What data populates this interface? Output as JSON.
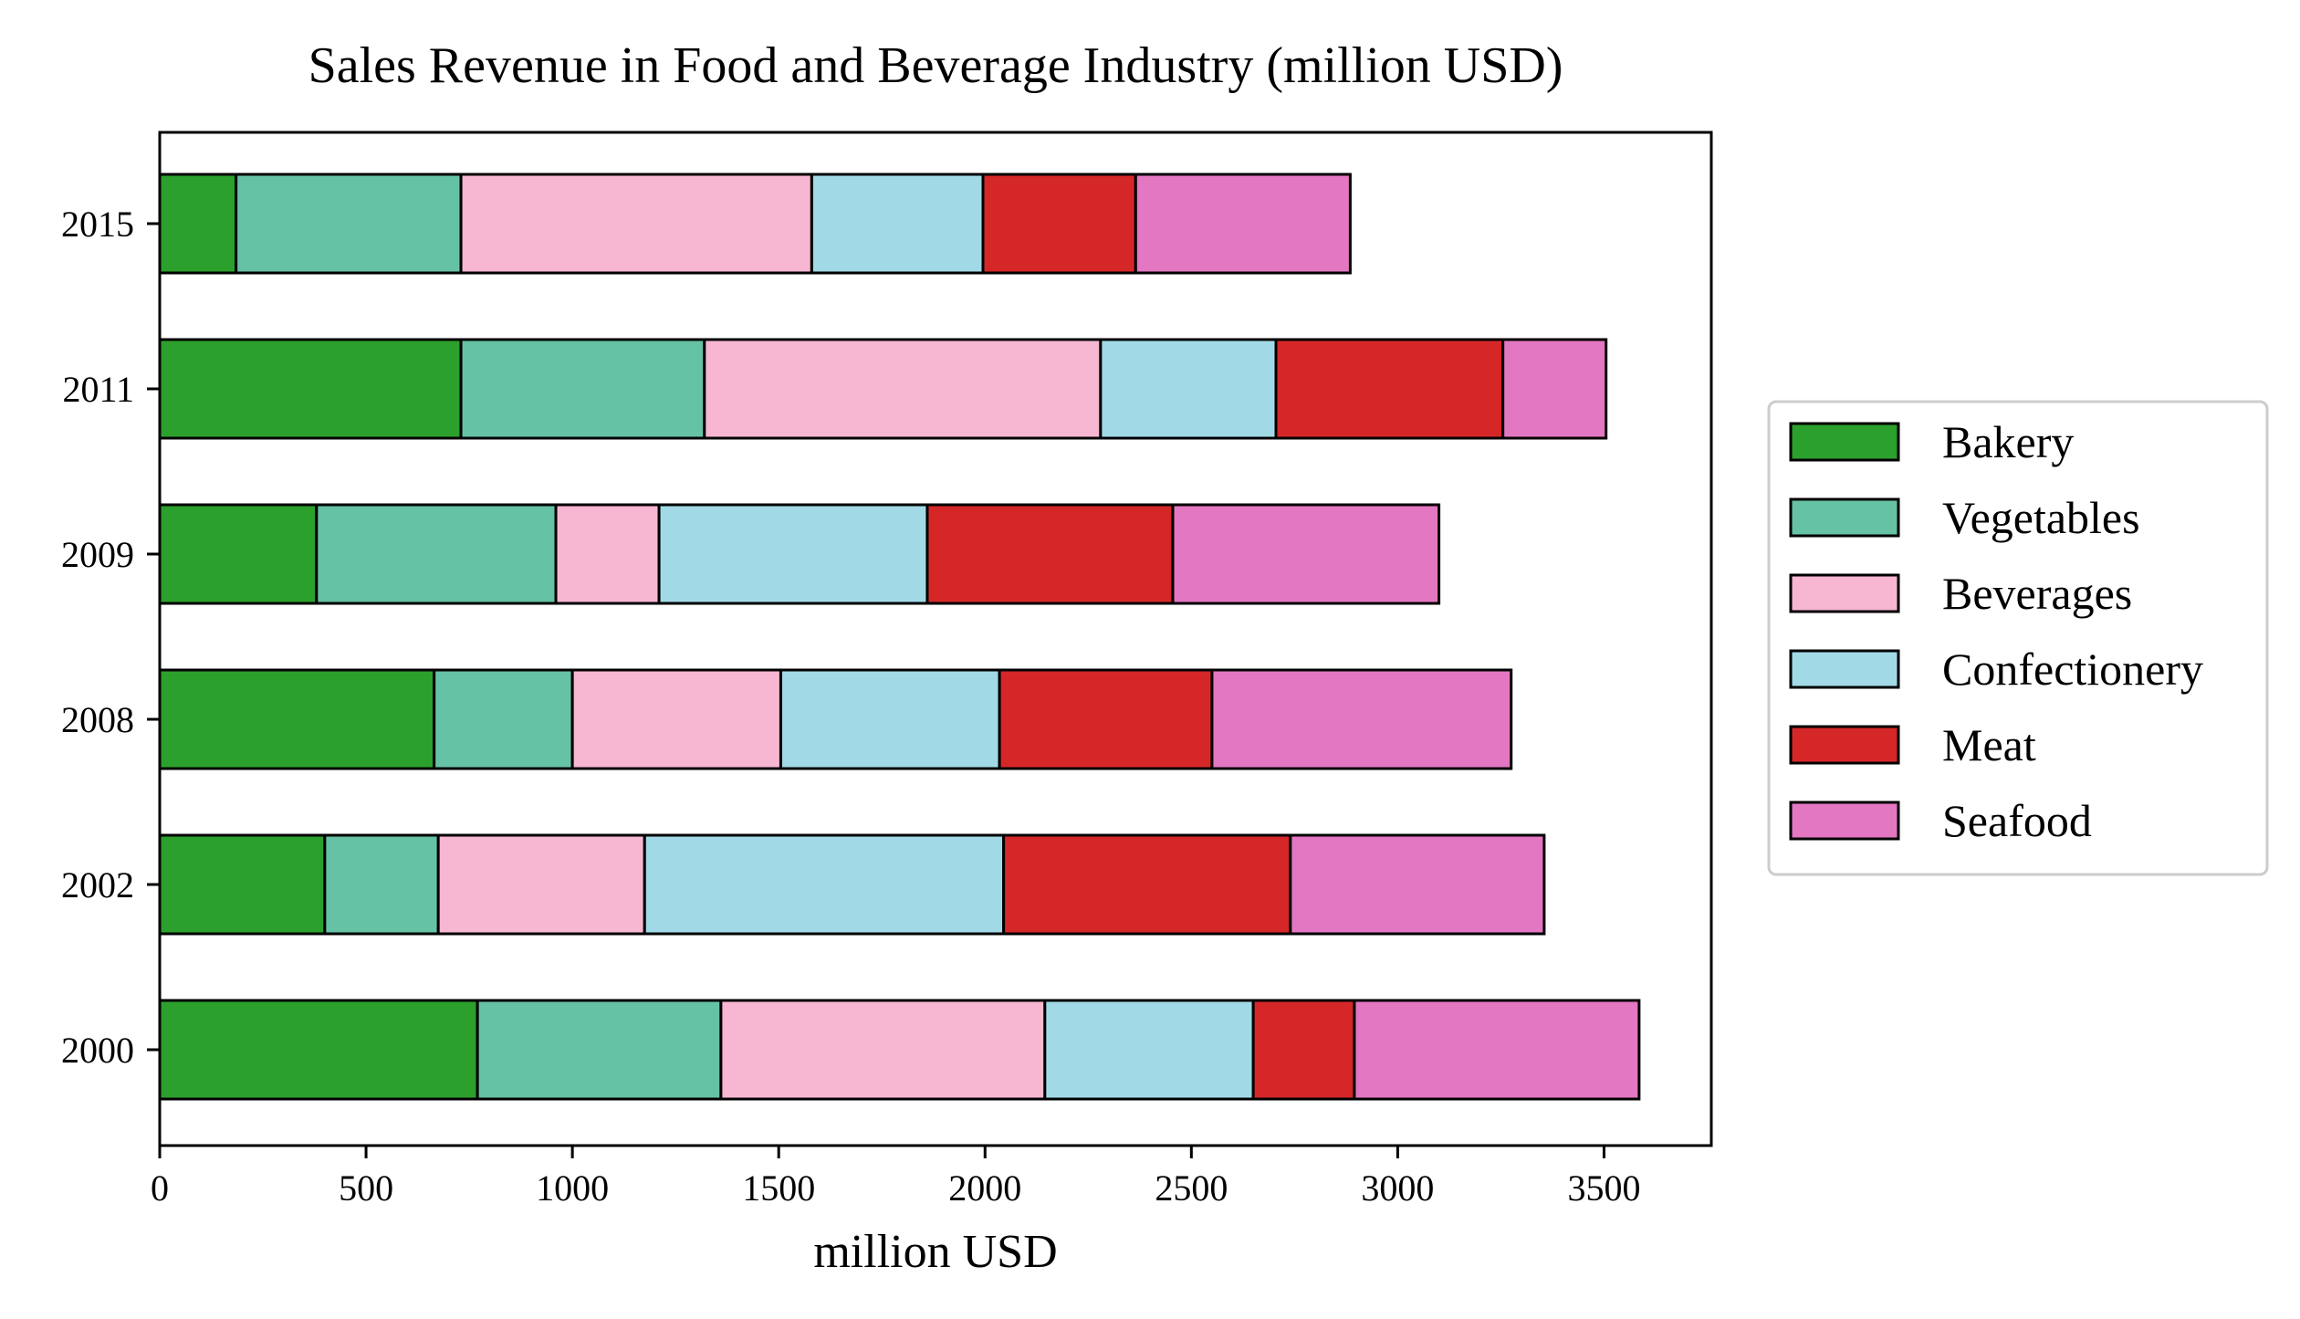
{
  "chart_data": {
    "type": "bar",
    "orientation": "horizontal",
    "stacked": true,
    "title": "Sales Revenue in Food and Beverage Industry (million USD)",
    "xlabel": "million USD",
    "ylabel": "",
    "xlim": [
      0,
      3760
    ],
    "xticks": [
      0,
      500,
      1000,
      1500,
      2000,
      2500,
      3000,
      3500
    ],
    "categories": [
      "2000",
      "2002",
      "2008",
      "2009",
      "2011",
      "2015"
    ],
    "series": [
      {
        "name": "Bakery",
        "color": "#2ca02c",
        "values": [
          770,
          400,
          665,
          380,
          730,
          185
        ]
      },
      {
        "name": "Vegetables",
        "color": "#66c2a5",
        "values": [
          590,
          275,
          335,
          580,
          590,
          545
        ]
      },
      {
        "name": "Beverages",
        "color": "#f7b6d2",
        "values": [
          785,
          500,
          505,
          250,
          960,
          850
        ]
      },
      {
        "name": "Confectionery",
        "color": "#a1dae6",
        "values": [
          505,
          870,
          530,
          650,
          425,
          415
        ]
      },
      {
        "name": "Meat",
        "color": "#d62728",
        "values": [
          245,
          695,
          515,
          595,
          550,
          370
        ]
      },
      {
        "name": "Seafood",
        "color": "#e377c2",
        "values": [
          690,
          615,
          725,
          645,
          250,
          520
        ]
      }
    ],
    "grid": false,
    "legend_position": "right"
  }
}
